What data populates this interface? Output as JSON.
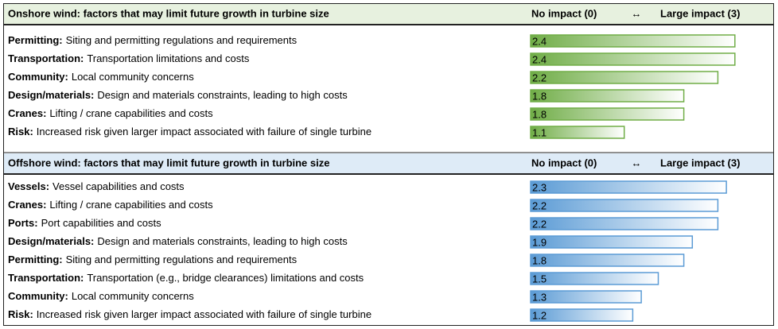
{
  "chart_data": [
    {
      "type": "bar",
      "orientation": "horizontal",
      "title": "Onshore wind: factors that may limit future growth in turbine size",
      "scale_low": "No impact (0)",
      "scale_arrow": "↔",
      "scale_high": "Large impact (3)",
      "categories": [
        "Permitting:",
        "Transportation:",
        "Community:",
        "Design/materials:",
        "Cranes:",
        "Risk:"
      ],
      "descriptions": [
        "Siting and permitting regulations and requirements",
        "Transportation limitations and costs",
        "Local community concerns",
        "Design and materials constraints, leading to high costs",
        "Lifting / crane capabilities and costs",
        "Increased risk given larger impact associated with failure of single turbine"
      ],
      "values": [
        2.4,
        2.4,
        2.2,
        1.8,
        1.8,
        1.1
      ],
      "xlim": [
        0,
        3
      ],
      "color": "#70ad47",
      "header_color": "#e7f1df"
    },
    {
      "type": "bar",
      "orientation": "horizontal",
      "title": "Offshore wind: factors that may limit future growth in turbine size",
      "scale_low": "No impact (0)",
      "scale_arrow": "↔",
      "scale_high": "Large impact (3)",
      "categories": [
        "Vessels:",
        "Cranes:",
        "Ports:",
        "Design/materials:",
        "Permitting:",
        "Transportation:",
        "Community:",
        "Risk:"
      ],
      "descriptions": [
        "Vessel capabilities and costs",
        "Lifting / crane capabilities and costs",
        "Port capabilities and costs",
        "Design and materials constraints, leading to high costs",
        "Siting and permitting regulations and requirements",
        "Transportation (e.g., bridge clearances) limitations and costs",
        "Local community concerns",
        "Increased risk given larger impact associated with failure of single turbine"
      ],
      "values": [
        2.3,
        2.2,
        2.2,
        1.9,
        1.8,
        1.5,
        1.3,
        1.2
      ],
      "xlim": [
        0,
        3
      ],
      "color": "#5b9bd5",
      "header_color": "#deebf7"
    }
  ]
}
